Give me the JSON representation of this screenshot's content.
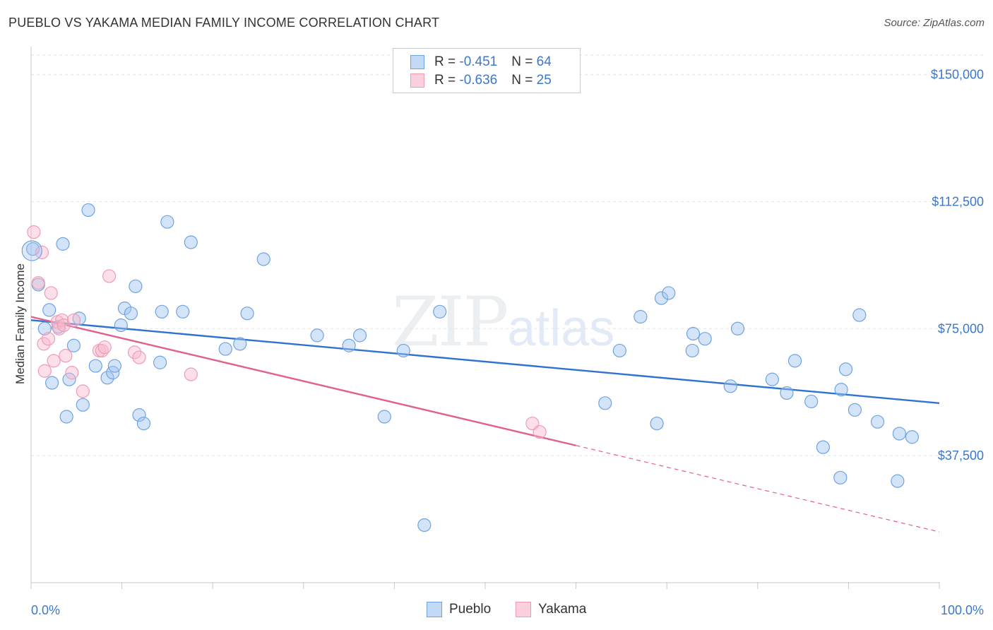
{
  "title": "PUEBLO VS YAKAMA MEDIAN FAMILY INCOME CORRELATION CHART",
  "source": "Source: ZipAtlas.com",
  "watermark": {
    "zip": "ZIP",
    "atlas": "atlas"
  },
  "legend": [
    {
      "r_label": "R = ",
      "r_value": "-0.451",
      "n_label": "N = ",
      "n_value": "64",
      "color": "#6fa3e0"
    },
    {
      "r_label": "R = ",
      "r_value": "-0.636",
      "n_label": "N = ",
      "n_value": "25",
      "color": "#f09bb5"
    }
  ],
  "bottom_legend": [
    {
      "label": "Pueblo",
      "color": "#6fa3e0"
    },
    {
      "label": "Yakama",
      "color": "#f09bb5"
    }
  ],
  "chart_data": {
    "type": "scatter",
    "title": "PUEBLO VS YAKAMA MEDIAN FAMILY INCOME CORRELATION CHART",
    "xlabel": "",
    "ylabel": "Median Family Income",
    "xlim": [
      0,
      100
    ],
    "ylim": [
      0,
      157000
    ],
    "x_tick_labels": [
      "0.0%",
      "100.0%"
    ],
    "y_ticks": [
      37500,
      75000,
      112500,
      150000
    ],
    "y_tick_labels": [
      "$37,500",
      "$75,000",
      "$112,500",
      "$150,000"
    ],
    "grid": "horizontal dashed",
    "series": [
      {
        "name": "Pueblo",
        "color": "#6fa3e0",
        "line_color": "#2f72d0",
        "trend": {
          "x": [
            0,
            100
          ],
          "y": [
            77500,
            53000
          ]
        },
        "points": [
          [
            0.2,
            98500
          ],
          [
            0.8,
            88000
          ],
          [
            1.5,
            75000
          ],
          [
            2.0,
            80500
          ],
          [
            2.3,
            59000
          ],
          [
            3.0,
            75500
          ],
          [
            3.5,
            100000
          ],
          [
            3.9,
            49000
          ],
          [
            4.2,
            60000
          ],
          [
            4.7,
            70000
          ],
          [
            5.3,
            78000
          ],
          [
            5.7,
            52500
          ],
          [
            6.3,
            110000
          ],
          [
            7.1,
            64000
          ],
          [
            8.4,
            60500
          ],
          [
            9.0,
            62000
          ],
          [
            9.2,
            64000
          ],
          [
            9.9,
            76000
          ],
          [
            10.3,
            81000
          ],
          [
            11.0,
            79500
          ],
          [
            11.5,
            87500
          ],
          [
            11.9,
            49500
          ],
          [
            12.4,
            47000
          ],
          [
            14.2,
            65000
          ],
          [
            14.4,
            80000
          ],
          [
            15.0,
            106500
          ],
          [
            16.7,
            80000
          ],
          [
            17.6,
            100500
          ],
          [
            21.4,
            69000
          ],
          [
            23.0,
            70500
          ],
          [
            23.8,
            79500
          ],
          [
            25.6,
            95500
          ],
          [
            31.5,
            73000
          ],
          [
            35.0,
            70000
          ],
          [
            36.2,
            73000
          ],
          [
            38.9,
            49000
          ],
          [
            41.0,
            68500
          ],
          [
            43.3,
            17000
          ],
          [
            45.0,
            80000
          ],
          [
            63.2,
            53000
          ],
          [
            64.8,
            68500
          ],
          [
            67.1,
            78500
          ],
          [
            68.9,
            47000
          ],
          [
            69.4,
            84000
          ],
          [
            70.2,
            85500
          ],
          [
            72.8,
            68500
          ],
          [
            72.9,
            73500
          ],
          [
            74.2,
            72000
          ],
          [
            77.0,
            58000
          ],
          [
            77.8,
            75000
          ],
          [
            81.6,
            60000
          ],
          [
            83.2,
            56000
          ],
          [
            84.1,
            65500
          ],
          [
            85.9,
            53500
          ],
          [
            87.2,
            40000
          ],
          [
            89.1,
            31000
          ],
          [
            89.2,
            57000
          ],
          [
            89.7,
            63000
          ],
          [
            90.7,
            51000
          ],
          [
            91.2,
            79000
          ],
          [
            93.2,
            47500
          ],
          [
            95.6,
            44000
          ],
          [
            97.0,
            43000
          ],
          [
            95.4,
            30000
          ]
        ]
      },
      {
        "name": "Yakama",
        "color": "#f09bb5",
        "line_color": "#e0608f",
        "trend": {
          "x": [
            0,
            60
          ],
          "y": [
            78500,
            40500
          ]
        },
        "trend_dashed": {
          "x": [
            60,
            100
          ],
          "y": [
            40500,
            15000
          ]
        },
        "points": [
          [
            0.3,
            103500
          ],
          [
            0.8,
            88500
          ],
          [
            1.2,
            97500
          ],
          [
            1.5,
            62500
          ],
          [
            1.4,
            70500
          ],
          [
            1.9,
            72000
          ],
          [
            2.2,
            85500
          ],
          [
            2.5,
            65500
          ],
          [
            2.9,
            77000
          ],
          [
            3.1,
            75000
          ],
          [
            3.4,
            77500
          ],
          [
            3.6,
            76000
          ],
          [
            3.8,
            67000
          ],
          [
            4.5,
            62000
          ],
          [
            4.7,
            77500
          ],
          [
            5.7,
            56500
          ],
          [
            7.5,
            68500
          ],
          [
            7.8,
            68500
          ],
          [
            8.1,
            69500
          ],
          [
            8.6,
            90500
          ],
          [
            11.4,
            68000
          ],
          [
            11.9,
            66500
          ],
          [
            17.6,
            61500
          ],
          [
            55.2,
            47000
          ],
          [
            56.0,
            44500
          ]
        ]
      }
    ]
  }
}
